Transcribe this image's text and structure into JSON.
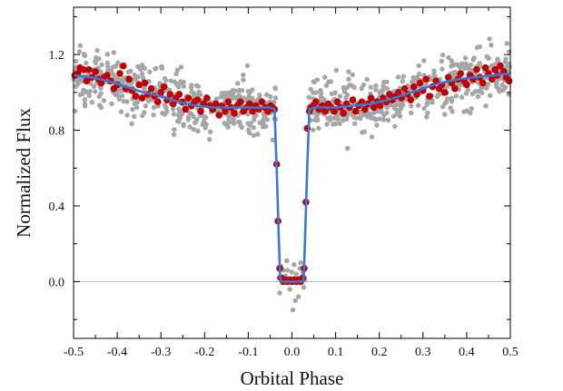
{
  "chart_data": {
    "type": "scatter",
    "title": "",
    "xlabel": "Orbital Phase",
    "ylabel": "Normalized Flux",
    "xlim": [
      -0.5,
      0.5
    ],
    "ylim": [
      -0.3,
      1.45
    ],
    "x_ticks": [
      -0.5,
      -0.4,
      -0.3,
      -0.2,
      -0.1,
      0.0,
      0.1,
      0.2,
      0.3,
      0.4,
      0.5
    ],
    "x_tick_labels": [
      "-0.5",
      "-0.4",
      "-0.3",
      "-0.2",
      "-0.1",
      "0.0",
      "0.1",
      "0.2",
      "0.3",
      "0.4",
      "0.5"
    ],
    "y_ticks": [
      0.0,
      0.4,
      0.8,
      1.2
    ],
    "y_tick_labels": [
      "0.0",
      "0.4",
      "0.8",
      "1.2"
    ],
    "reference_line_y": 0.0,
    "colors": {
      "raw": "#a6a6a6",
      "binned": "#c00000",
      "model": "#3a78d8",
      "reference": "#b8b8b8",
      "axis": "#000000"
    },
    "series": [
      {
        "role": "raw",
        "marker": "circle",
        "points_per_side_outside_transit": 430,
        "scatter_sigma": 0.07,
        "baseline": [
          [
            -0.5,
            1.09
          ],
          [
            -0.45,
            1.08
          ],
          [
            -0.4,
            1.05
          ],
          [
            -0.35,
            1.01
          ],
          [
            -0.3,
            0.99
          ],
          [
            -0.25,
            0.95
          ],
          [
            -0.2,
            0.93
          ],
          [
            -0.15,
            0.92
          ],
          [
            -0.1,
            0.92
          ],
          [
            -0.05,
            0.92
          ],
          [
            -0.04,
            0.92
          ],
          [
            0.04,
            0.92
          ],
          [
            0.05,
            0.92
          ],
          [
            0.1,
            0.92
          ],
          [
            0.15,
            0.92
          ],
          [
            0.2,
            0.94
          ],
          [
            0.25,
            0.98
          ],
          [
            0.3,
            1.02
          ],
          [
            0.35,
            1.05
          ],
          [
            0.4,
            1.07
          ],
          [
            0.45,
            1.09
          ],
          [
            0.5,
            1.1
          ]
        ],
        "in_transit": [
          [
            -0.03,
            0.02
          ],
          [
            -0.025,
            0.08
          ],
          [
            -0.02,
            0.06
          ],
          [
            -0.015,
            0.03
          ],
          [
            -0.01,
            0.06
          ],
          [
            -0.005,
            -0.04
          ],
          [
            0.0,
            0.05
          ],
          [
            0.005,
            0.09
          ],
          [
            0.01,
            0.04
          ],
          [
            0.015,
            -0.08
          ],
          [
            0.02,
            0.1
          ],
          [
            0.025,
            0.05
          ],
          [
            0.03,
            0.01
          ],
          [
            -0.028,
            -0.06
          ],
          [
            -0.012,
            0.11
          ],
          [
            0.008,
            -0.1
          ],
          [
            0.018,
            0.07
          ],
          [
            -0.022,
            0.0
          ],
          [
            0.002,
            -0.15
          ],
          [
            0.027,
            -0.03
          ]
        ]
      },
      {
        "role": "binned",
        "marker": "circle",
        "x": [
          -0.497,
          -0.49,
          -0.485,
          -0.477,
          -0.47,
          -0.465,
          -0.458,
          -0.45,
          -0.443,
          -0.437,
          -0.43,
          -0.423,
          -0.415,
          -0.408,
          -0.4,
          -0.394,
          -0.386,
          -0.38,
          -0.373,
          -0.366,
          -0.358,
          -0.35,
          -0.343,
          -0.337,
          -0.33,
          -0.322,
          -0.315,
          -0.307,
          -0.3,
          -0.293,
          -0.286,
          -0.279,
          -0.272,
          -0.265,
          -0.258,
          -0.251,
          -0.244,
          -0.237,
          -0.23,
          -0.223,
          -0.216,
          -0.209,
          -0.202,
          -0.195,
          -0.188,
          -0.181,
          -0.174,
          -0.167,
          -0.16,
          -0.153,
          -0.146,
          -0.139,
          -0.132,
          -0.125,
          -0.118,
          -0.111,
          -0.104,
          -0.097,
          -0.09,
          -0.083,
          -0.076,
          -0.069,
          -0.062,
          -0.055,
          -0.049,
          -0.044,
          -0.04,
          -0.035,
          -0.032,
          -0.028,
          -0.025,
          -0.02,
          -0.015,
          -0.01,
          -0.005,
          0.0,
          0.005,
          0.01,
          0.015,
          0.02,
          0.025,
          0.028,
          0.032,
          0.035,
          0.04,
          0.044,
          0.049,
          0.055,
          0.062,
          0.069,
          0.076,
          0.083,
          0.09,
          0.097,
          0.104,
          0.111,
          0.118,
          0.125,
          0.132,
          0.139,
          0.146,
          0.153,
          0.16,
          0.167,
          0.174,
          0.181,
          0.188,
          0.195,
          0.202,
          0.209,
          0.216,
          0.223,
          0.23,
          0.237,
          0.244,
          0.251,
          0.258,
          0.265,
          0.272,
          0.279,
          0.286,
          0.293,
          0.3,
          0.307,
          0.315,
          0.322,
          0.33,
          0.337,
          0.343,
          0.35,
          0.358,
          0.366,
          0.373,
          0.38,
          0.386,
          0.394,
          0.4,
          0.408,
          0.415,
          0.423,
          0.43,
          0.437,
          0.443,
          0.45,
          0.458,
          0.465,
          0.47,
          0.477,
          0.485,
          0.49,
          0.497
        ],
        "y": [
          1.09,
          1.1,
          1.13,
          1.12,
          1.06,
          1.12,
          1.08,
          1.11,
          1.07,
          1.05,
          1.08,
          1.09,
          1.06,
          1.02,
          1.04,
          1.1,
          1.14,
          1.02,
          1.07,
          1.01,
          0.98,
          1.04,
          0.97,
          1.05,
          0.99,
          1.02,
          0.98,
          0.95,
          1.0,
          1.03,
          0.96,
          0.99,
          0.94,
          0.97,
          0.99,
          0.95,
          0.91,
          0.97,
          0.93,
          0.95,
          0.96,
          0.9,
          0.94,
          0.97,
          0.93,
          0.91,
          0.94,
          0.88,
          0.93,
          0.9,
          0.95,
          0.92,
          0.89,
          0.93,
          0.95,
          0.9,
          0.92,
          0.94,
          0.9,
          0.93,
          0.91,
          0.95,
          0.92,
          0.9,
          0.93,
          0.92,
          0.91,
          0.62,
          0.32,
          0.07,
          0.02,
          0.0,
          0.01,
          0.0,
          0.01,
          0.0,
          0.01,
          0.0,
          0.01,
          0.0,
          0.02,
          0.07,
          0.42,
          0.81,
          0.9,
          0.92,
          0.93,
          0.95,
          0.91,
          0.93,
          0.9,
          0.94,
          0.92,
          0.9,
          0.95,
          0.92,
          0.89,
          0.94,
          0.92,
          0.96,
          0.9,
          0.93,
          0.95,
          0.91,
          0.94,
          0.97,
          0.92,
          0.95,
          0.93,
          0.97,
          0.95,
          0.99,
          0.96,
          0.98,
          1.0,
          0.97,
          1.02,
          0.99,
          0.96,
          1.03,
          0.99,
          1.05,
          1.01,
          1.07,
          0.98,
          1.03,
          1.06,
          1.02,
          1.04,
          1.0,
          1.08,
          1.05,
          1.02,
          1.07,
          1.1,
          1.06,
          1.04,
          1.09,
          1.07,
          1.12,
          1.08,
          1.05,
          1.13,
          1.1,
          1.07,
          1.12,
          1.09,
          1.14,
          1.11,
          1.08,
          1.06
        ]
      },
      {
        "role": "model",
        "marker": "line",
        "x": [
          -0.5,
          -0.46,
          -0.42,
          -0.38,
          -0.34,
          -0.3,
          -0.26,
          -0.22,
          -0.18,
          -0.14,
          -0.1,
          -0.07,
          -0.05,
          -0.04,
          -0.035,
          -0.03,
          -0.027,
          -0.024,
          0.024,
          0.027,
          0.03,
          0.035,
          0.04,
          0.05,
          0.07,
          0.1,
          0.14,
          0.18,
          0.22,
          0.26,
          0.3,
          0.34,
          0.38,
          0.42,
          0.46,
          0.5
        ],
        "y": [
          1.09,
          1.08,
          1.06,
          1.03,
          1.0,
          0.98,
          0.95,
          0.93,
          0.92,
          0.92,
          0.92,
          0.92,
          0.92,
          0.91,
          0.6,
          0.22,
          0.02,
          0.0,
          0.0,
          0.02,
          0.22,
          0.6,
          0.91,
          0.92,
          0.92,
          0.92,
          0.93,
          0.94,
          0.96,
          0.99,
          1.02,
          1.05,
          1.07,
          1.08,
          1.09,
          1.1
        ]
      }
    ]
  }
}
